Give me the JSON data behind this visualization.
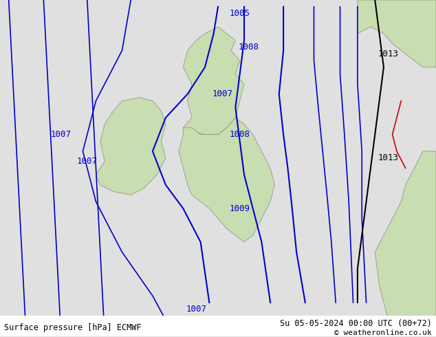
{
  "title_left": "Surface pressure [hPa] ECMWF",
  "title_right": "Su 05-05-2024 00:00 UTC (00+72)",
  "copyright": "© weatheronline.co.uk",
  "bg_color": "#e0e0e0",
  "land_color": "#c8ddb0",
  "sea_color": "#e0e0e0",
  "isobar_color": "#0000cc",
  "coast_color": "#888888",
  "strong_coast_color": "#000000",
  "red_line_color": "#cc0000",
  "font_size_labels": 9,
  "font_size_bottom": 8.5,
  "bottom_bar_color": "#ffffff",
  "label_1003_color": "#0000cc",
  "label_1013_color": "#000000"
}
